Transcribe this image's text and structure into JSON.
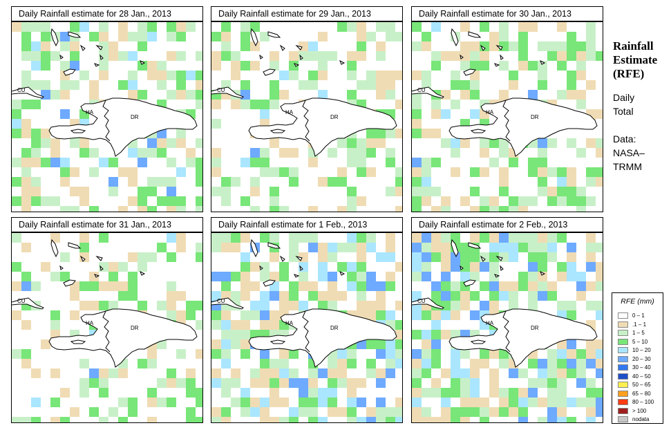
{
  "panels": [
    {
      "title": "Daily Rainfall estimate for  28 Jan., 2013",
      "seed": 11,
      "wet": 0.55,
      "heavy": 0.05
    },
    {
      "title": "Daily Rainfall estimate for  29 Jan., 2013",
      "seed": 23,
      "wet": 0.45,
      "heavy": 0.02
    },
    {
      "title": "Daily Rainfall estimate for  30 Jan., 2013",
      "seed": 37,
      "wet": 0.55,
      "heavy": 0.03
    },
    {
      "title": "Daily Rainfall estimate for  31 Jan., 2013",
      "seed": 41,
      "wet": 0.35,
      "heavy": 0.01
    },
    {
      "title": "Daily Rainfall estimate for  1 Feb., 2013",
      "seed": 53,
      "wet": 0.6,
      "heavy": 0.15
    },
    {
      "title": "Daily Rainfall estimate for  2 Feb., 2013",
      "seed": 67,
      "wet": 0.6,
      "heavy": 0.2
    }
  ],
  "labels": {
    "cu": "CU",
    "ha": "HA",
    "dr": "DR"
  },
  "side": {
    "title_line1": "Rainfall",
    "title_line2": "Estimate",
    "title_line3": "(RFE)",
    "daily_line1": "Daily",
    "daily_line2": "Total",
    "data_line1": "Data:",
    "data_line2": "NASA–",
    "data_line3": "TRMM"
  },
  "legend": {
    "title": "RFE (mm)",
    "items": [
      {
        "label": "0 – 1",
        "color": "#ffffff"
      },
      {
        "label": ".1 – 1",
        "color": "#f0dcb4"
      },
      {
        "label": "1 – 5",
        "color": "#c8f0c8"
      },
      {
        "label": "5 – 10",
        "color": "#78e678"
      },
      {
        "label": "10 – 20",
        "color": "#aae6ff"
      },
      {
        "label": "20 – 30",
        "color": "#6eaaff"
      },
      {
        "label": "30 – 40",
        "color": "#3278f0"
      },
      {
        "label": "40 – 50",
        "color": "#1e50c8"
      },
      {
        "label": "50 – 65",
        "color": "#fff050"
      },
      {
        "label": "65 – 80",
        "color": "#ffa01e"
      },
      {
        "label": "80 – 100",
        "color": "#ff3c14"
      },
      {
        "label": "> 100",
        "color": "#a01e1e"
      },
      {
        "label": "nodata",
        "color": "#c8c8c8"
      }
    ]
  }
}
